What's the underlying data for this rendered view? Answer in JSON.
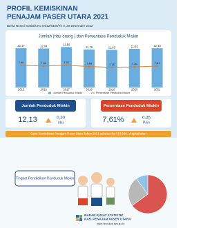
{
  "header": {
    "title_line1": "PROFIL KEMISKINAN",
    "title_line2": "PENAJAM PASER UTARA 2021",
    "source": "Berita Resmi Statistik No 04/12/6409/Th II, 20 Desember 2022"
  },
  "chart": {
    "type": "bar-line",
    "title": "Jumlah (ribu orang ) dan Persentase Penduduk Miskin",
    "categories": [
      "2015",
      "2016",
      "2017",
      "2018",
      "2019",
      "2020",
      "2021"
    ],
    "series": [
      {
        "name": "Jumlah Penduduk Miskin",
        "color": "#6aaee0",
        "values": [
          12.17,
          12.04,
          12.5,
          11.76,
          11.63,
          11.93,
          12.13
        ],
        "value_labels": [
          "12,17",
          "12,04",
          "12,50",
          "11,76",
          "11,63",
          "11,93",
          "12,13"
        ]
      },
      {
        "name": "Persentase Penduduk Miskin",
        "color": "#e07a28",
        "axis": "y2",
        "values": [
          7.9,
          7.66,
          7.92,
          7.48,
          7.18,
          7.36,
          7.61
        ],
        "value_labels": [
          "7,90",
          "7,66",
          "7,92",
          "7,48",
          "7,18",
          "7,36",
          "7,61"
        ]
      }
    ],
    "ylim": [
      0,
      13
    ],
    "y2lim": [
      0,
      15
    ]
  },
  "cards": [
    {
      "title": "Jumlah Penduduk Miskin",
      "value": "12,13",
      "change": "0,20",
      "unit": "ribu",
      "color": "#1f4e8c"
    },
    {
      "title": "Persentase Penduduk Miskin",
      "value": "7,61%",
      "change": "0,25",
      "unit": "Poin",
      "color": "#d9452b"
    }
  ],
  "banner": "Garis Kemiskinan Penajam Paser Utara Tahun 2021  sebesar Rp 513.606,- /kapita/bulan",
  "education": {
    "title": "Tingkat Pendidikan Penduduk Miskin",
    "pie": {
      "values": [
        65,
        25,
        10
      ],
      "colors": [
        "#d9534f",
        "#b8b8b8",
        "#8fc3e8"
      ]
    }
  },
  "footer": {
    "org_line1": "BADAN PUSAT STATISTIK",
    "org_line2": "KAB. PENAJAM PASER UTARA",
    "url": "https://ppukab.bps.go.id"
  }
}
